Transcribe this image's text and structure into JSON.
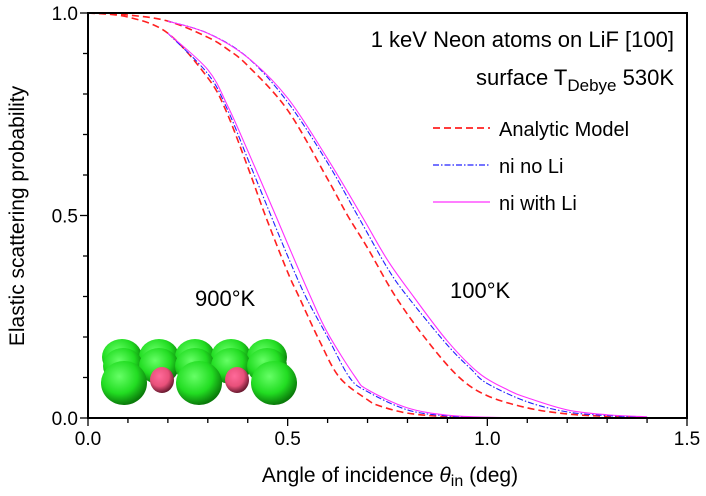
{
  "chart_data": {
    "type": "line",
    "title": "1 keV Neon atoms on LiF [100]",
    "subtitle": {
      "prefix": "surface T",
      "subscript": "Debye",
      "suffix": " 530K"
    },
    "xlabel": {
      "prefix": "Angle of incidence ",
      "symbol": "θ",
      "subscript": "in",
      "suffix": " (deg)"
    },
    "ylabel": "Elastic scattering probability",
    "xlim": [
      0,
      1.5
    ],
    "ylim": [
      0,
      1.0
    ],
    "xticks": [
      {
        "v": 0,
        "label": "0.0"
      },
      {
        "v": 0.5,
        "label": "0.5"
      },
      {
        "v": 1.0,
        "label": "1.0"
      },
      {
        "v": 1.5,
        "label": "1.5"
      }
    ],
    "yticks": [
      {
        "v": 0,
        "label": "0.0"
      },
      {
        "v": 0.5,
        "label": "0.5"
      },
      {
        "v": 1.0,
        "label": "1.0"
      }
    ],
    "minor_tick_step": 0.1,
    "grid": false,
    "legend_position": "top-right",
    "legend": [
      {
        "name": "Analytic Model",
        "color": "#ff2020",
        "dash": "dashed"
      },
      {
        "name": "ni no Li",
        "color": "#2020ff",
        "dash": "dash-dot"
      },
      {
        "name": "ni with Li",
        "color": "#ff30ff",
        "dash": "solid"
      }
    ],
    "annotations": [
      "900°K",
      "100°K"
    ],
    "series": [
      {
        "group": "100°K",
        "legend_index": 0,
        "x": [
          0,
          0.1,
          0.2,
          0.3,
          0.35,
          0.4,
          0.5,
          0.6,
          0.65,
          0.7,
          0.77,
          0.85,
          0.93,
          1.0,
          1.1,
          1.2,
          1.3,
          1.4
        ],
        "y": [
          1.0,
          0.995,
          0.98,
          0.94,
          0.91,
          0.87,
          0.76,
          0.59,
          0.5,
          0.42,
          0.3,
          0.19,
          0.1,
          0.055,
          0.025,
          0.01,
          0.004,
          0.0
        ]
      },
      {
        "group": "100°K",
        "legend_index": 1,
        "x": [
          0.2,
          0.3,
          0.4,
          0.5,
          0.6,
          0.675,
          0.75,
          0.8,
          0.9,
          0.96,
          1.0,
          1.1,
          1.2,
          1.3,
          1.4
        ],
        "y": [
          0.98,
          0.95,
          0.89,
          0.78,
          0.63,
          0.5,
          0.37,
          0.3,
          0.18,
          0.12,
          0.085,
          0.04,
          0.015,
          0.006,
          0.002
        ]
      },
      {
        "group": "100°K",
        "legend_index": 2,
        "x": [
          0.2,
          0.3,
          0.4,
          0.5,
          0.6,
          0.685,
          0.75,
          0.815,
          0.9,
          0.98,
          1.05,
          1.1,
          1.2,
          1.3,
          1.4
        ],
        "y": [
          0.98,
          0.95,
          0.89,
          0.79,
          0.64,
          0.5,
          0.39,
          0.3,
          0.19,
          0.11,
          0.07,
          0.05,
          0.02,
          0.008,
          0.003
        ]
      },
      {
        "group": "900°K",
        "legend_index": 0,
        "x": [
          0,
          0.1,
          0.2,
          0.3,
          0.345,
          0.4,
          0.444,
          0.5,
          0.528,
          0.58,
          0.63,
          0.7,
          0.73,
          0.8,
          0.9,
          1.0,
          1.1
        ],
        "y": [
          1.0,
          0.99,
          0.95,
          0.84,
          0.76,
          0.62,
          0.5,
          0.36,
          0.3,
          0.19,
          0.1,
          0.045,
          0.03,
          0.012,
          0.003,
          0.0,
          0.0
        ]
      },
      {
        "group": "900°K",
        "legend_index": 1,
        "x": [
          0.2,
          0.3,
          0.35,
          0.4,
          0.458,
          0.5,
          0.545,
          0.6,
          0.655,
          0.7,
          0.8,
          0.9,
          1.0,
          1.1
        ],
        "y": [
          0.95,
          0.85,
          0.76,
          0.64,
          0.5,
          0.4,
          0.3,
          0.2,
          0.1,
          0.065,
          0.02,
          0.005,
          0.001,
          0.0
        ]
      },
      {
        "group": "900°K",
        "legend_index": 2,
        "x": [
          0.2,
          0.3,
          0.35,
          0.4,
          0.47,
          0.5,
          0.557,
          0.6,
          0.67,
          0.7,
          0.8,
          0.9,
          1.0,
          1.1
        ],
        "y": [
          0.95,
          0.86,
          0.77,
          0.66,
          0.5,
          0.43,
          0.3,
          0.21,
          0.1,
          0.07,
          0.025,
          0.007,
          0.002,
          0.0
        ]
      }
    ],
    "inset": {
      "description_icon": "lif-surface-atoms-icon",
      "large_atom_color": "#22dd22",
      "small_atom_color": "#e8507a"
    }
  }
}
